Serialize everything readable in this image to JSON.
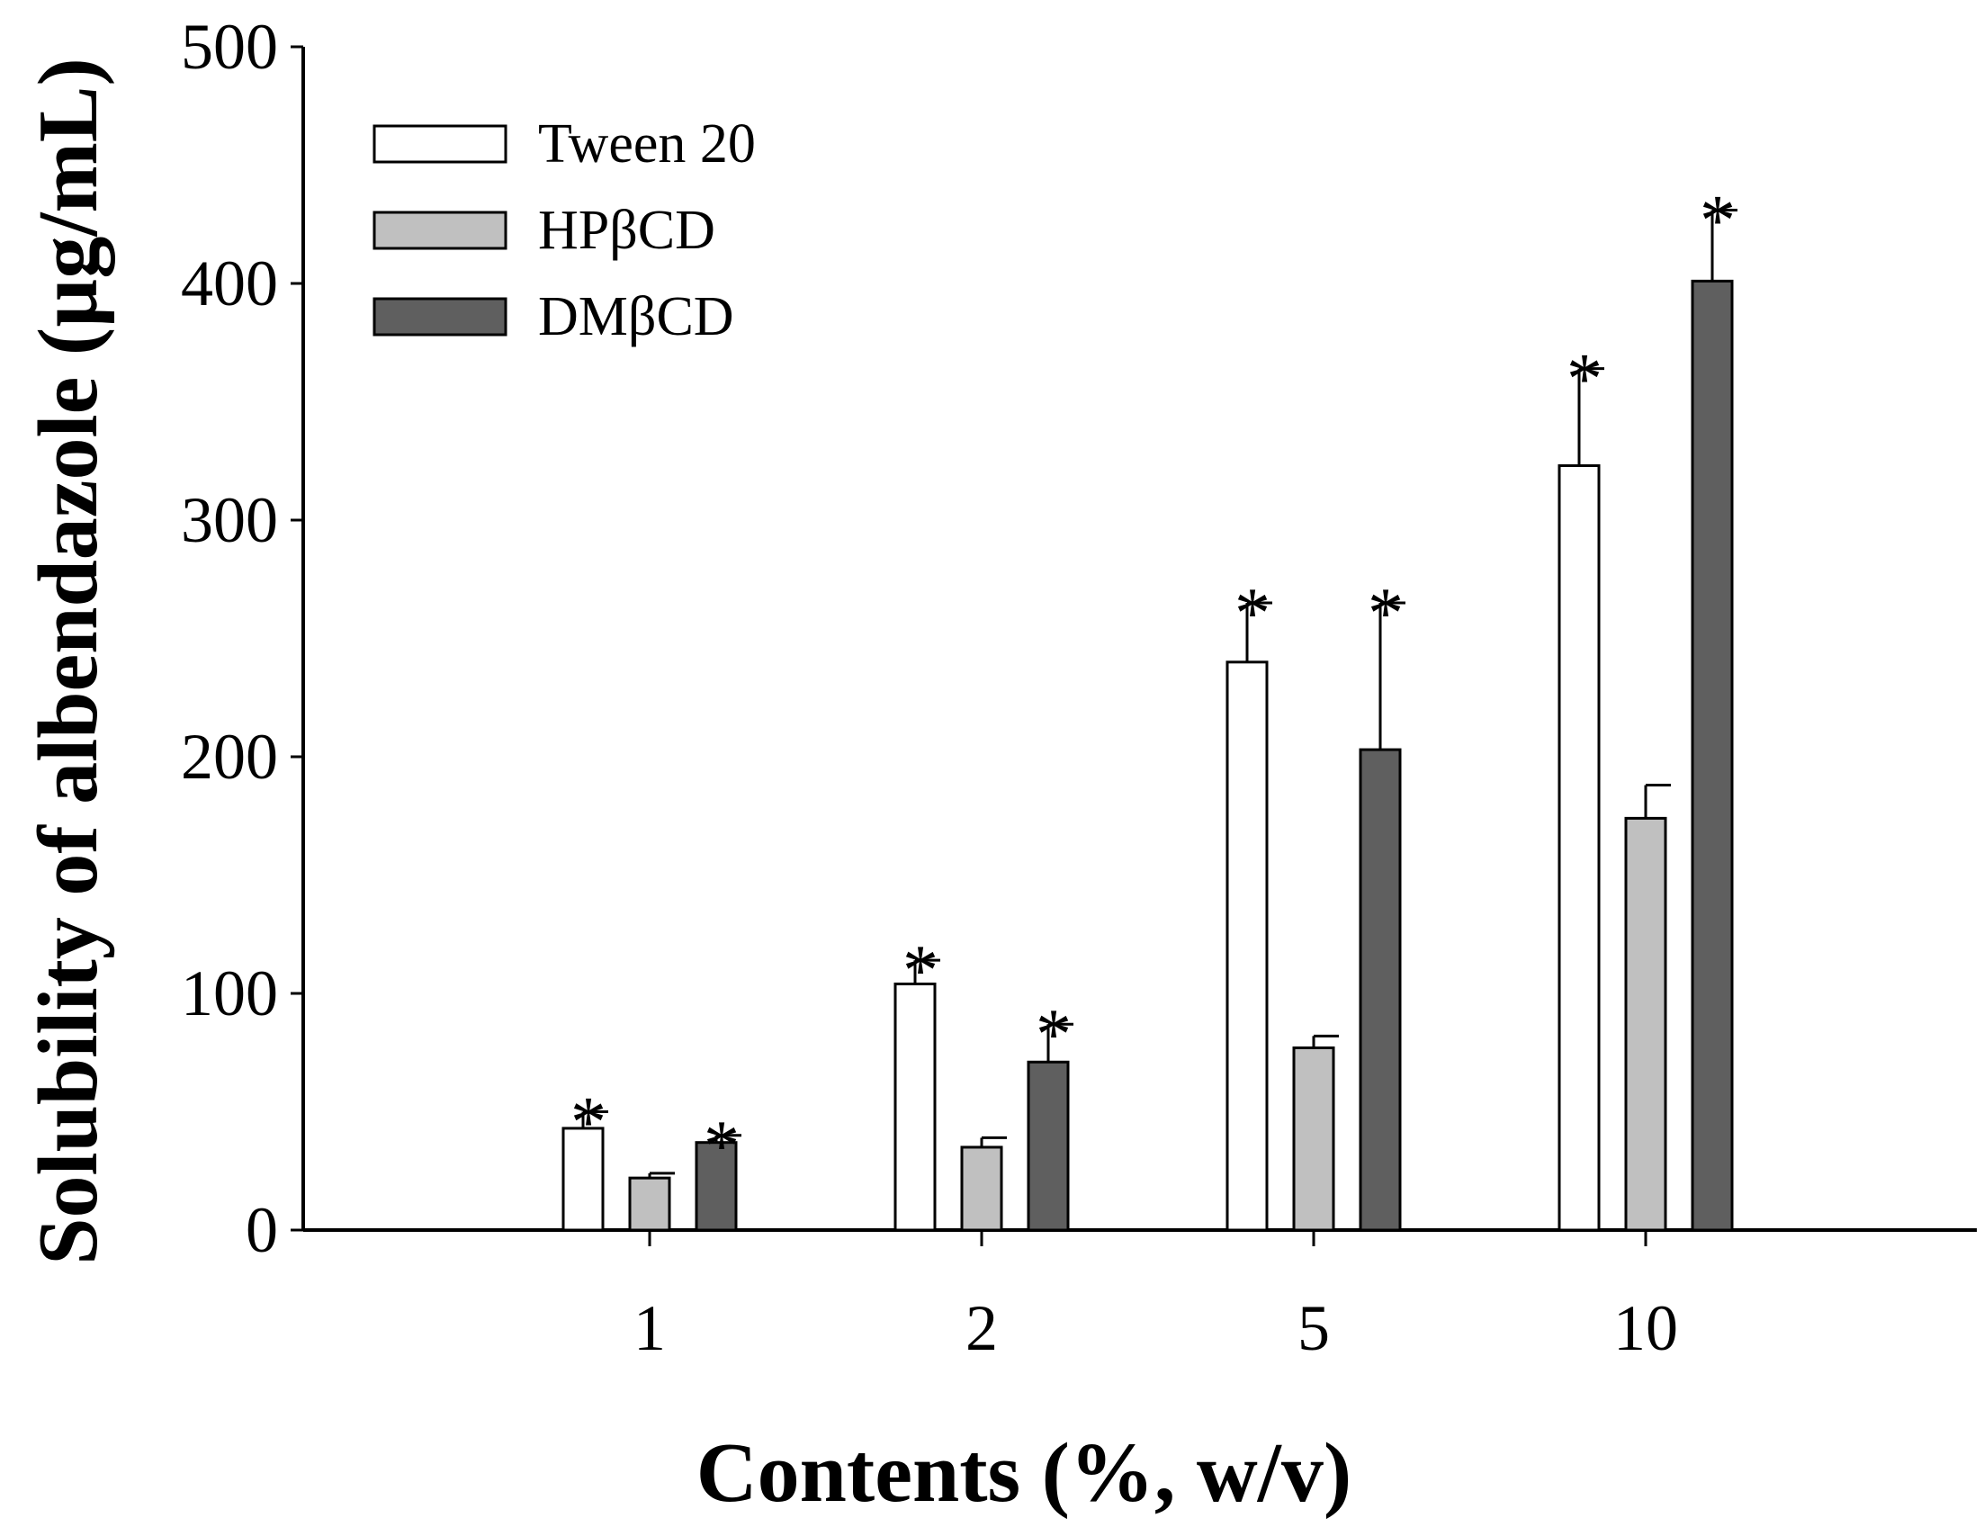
{
  "chart_data": {
    "type": "bar",
    "title": "",
    "xlabel": "Contents (%, w/v)",
    "ylabel": "Solubility of albendazole (µg/mL)",
    "categories": [
      "1",
      "2",
      "5",
      "10"
    ],
    "ylim": [
      0,
      500
    ],
    "yticks": [
      0,
      100,
      200,
      300,
      400,
      500
    ],
    "grid": false,
    "legend_position": "top-left",
    "series": [
      {
        "name": "Tween 20",
        "color": "#ffffff",
        "values": [
          43,
          104,
          240,
          323
        ],
        "errors": [
          7,
          10,
          25,
          41
        ],
        "significance": [
          "*",
          "*",
          "*",
          "*"
        ]
      },
      {
        "name": "HPβCD",
        "color": "#c0c0c0",
        "values": [
          22,
          35,
          77,
          174
        ],
        "errors": [
          2,
          4,
          5,
          14
        ],
        "significance": [
          "",
          "",
          "",
          ""
        ]
      },
      {
        "name": "DMβCD",
        "color": "#5f5f5f",
        "values": [
          37,
          71,
          203,
          401
        ],
        "errors": [
          3,
          16,
          62,
          30
        ],
        "significance": [
          "*",
          "*",
          "*",
          "*"
        ]
      }
    ]
  }
}
